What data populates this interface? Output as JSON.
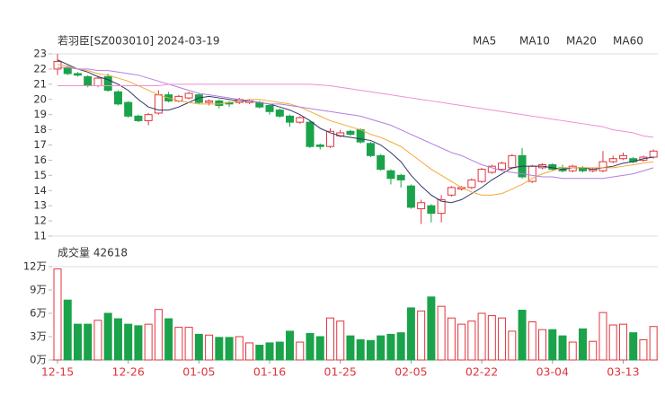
{
  "chart_data": [
    {
      "type": "candlestick",
      "title": "若羽臣[SZ003010] 2024-03-19",
      "categories": [
        "12-15",
        null,
        null,
        null,
        null,
        null,
        null,
        "12-26",
        null,
        null,
        null,
        null,
        null,
        null,
        "01-05",
        null,
        null,
        null,
        null,
        null,
        null,
        "01-16",
        null,
        null,
        null,
        null,
        null,
        null,
        "01-25",
        null,
        null,
        null,
        null,
        null,
        null,
        "02-05",
        null,
        null,
        null,
        null,
        null,
        null,
        "02-22",
        null,
        null,
        null,
        null,
        null,
        null,
        "03-04",
        null,
        null,
        null,
        null,
        null,
        null,
        "03-13",
        null,
        null,
        null
      ],
      "open": [
        22.0,
        22.1,
        21.7,
        21.5,
        20.9,
        21.5,
        20.5,
        19.8,
        18.9,
        18.6,
        19.1,
        20.3,
        19.9,
        20.1,
        20.3,
        19.8,
        19.9,
        19.8,
        19.8,
        19.8,
        19.8,
        19.6,
        19.3,
        18.9,
        18.5,
        18.5,
        17.0,
        16.9,
        17.6,
        17.9,
        18.0,
        17.1,
        16.3,
        15.3,
        15.0,
        14.3,
        12.8,
        13.0,
        12.5,
        13.7,
        14.1,
        14.2,
        14.6,
        15.2,
        15.4,
        15.5,
        16.3,
        14.6,
        15.5,
        15.7,
        15.5,
        15.3,
        15.5,
        15.3,
        15.3,
        15.9,
        16.1,
        16.1,
        16.0,
        16.2
      ],
      "high": [
        23.0,
        22.2,
        21.8,
        21.6,
        21.5,
        21.7,
        20.6,
        19.9,
        19.0,
        19.1,
        20.6,
        20.5,
        20.3,
        20.5,
        20.4,
        20.0,
        20.0,
        19.9,
        20.1,
        20.0,
        19.9,
        19.7,
        19.4,
        19.0,
        18.9,
        18.6,
        17.1,
        18.1,
        18.0,
        18.0,
        18.1,
        17.2,
        16.4,
        15.4,
        15.1,
        14.4,
        13.4,
        13.1,
        13.7,
        14.3,
        14.3,
        14.8,
        15.5,
        15.7,
        15.9,
        16.4,
        16.8,
        15.7,
        15.8,
        15.8,
        15.7,
        15.7,
        15.6,
        15.5,
        16.6,
        16.3,
        16.5,
        16.2,
        16.3,
        16.7
      ],
      "low": [
        21.6,
        21.6,
        21.5,
        20.8,
        20.8,
        20.5,
        19.6,
        18.8,
        18.5,
        18.3,
        19.0,
        19.8,
        19.8,
        20.0,
        19.7,
        19.6,
        19.4,
        19.5,
        19.7,
        19.7,
        19.4,
        19.0,
        18.8,
        18.2,
        18.4,
        16.8,
        16.7,
        16.8,
        17.5,
        17.6,
        17.1,
        16.2,
        15.3,
        14.4,
        14.2,
        12.8,
        11.8,
        11.9,
        11.9,
        13.6,
        14.0,
        14.1,
        14.5,
        15.1,
        15.3,
        15.4,
        14.8,
        14.5,
        15.4,
        15.3,
        15.2,
        15.2,
        15.2,
        15.2,
        15.2,
        15.8,
        16.0,
        15.8,
        15.9,
        16.1
      ],
      "close": [
        22.5,
        21.7,
        21.6,
        20.9,
        21.4,
        20.6,
        19.7,
        18.9,
        18.6,
        19.0,
        20.3,
        19.9,
        20.2,
        20.4,
        19.8,
        19.9,
        19.6,
        19.7,
        20.0,
        19.9,
        19.5,
        19.2,
        18.9,
        18.5,
        18.8,
        16.9,
        16.9,
        17.9,
        17.8,
        17.7,
        17.2,
        16.3,
        15.4,
        14.8,
        14.7,
        12.9,
        13.2,
        12.5,
        13.4,
        14.2,
        14.2,
        14.7,
        15.4,
        15.6,
        15.8,
        16.3,
        14.9,
        15.6,
        15.7,
        15.4,
        15.3,
        15.6,
        15.3,
        15.4,
        15.9,
        16.1,
        16.3,
        15.9,
        16.2,
        16.6
      ],
      "up_color": "#e0353d",
      "down_color": "#1aa34a",
      "series": [
        {
          "name": "MA5",
          "color": "#2f3566",
          "values": [
            22.6,
            22.3,
            22.0,
            21.8,
            21.5,
            21.3,
            21.0,
            20.6,
            20.0,
            19.5,
            19.3,
            19.3,
            19.5,
            19.8,
            20.1,
            20.2,
            20.1,
            20.0,
            19.9,
            19.9,
            19.8,
            19.7,
            19.5,
            19.3,
            19.0,
            18.6,
            18.1,
            17.8,
            17.6,
            17.5,
            17.4,
            17.3,
            17.0,
            16.5,
            15.9,
            15.0,
            14.3,
            13.7,
            13.3,
            13.2,
            13.4,
            13.8,
            14.2,
            14.7,
            15.1,
            15.5,
            15.6,
            15.6,
            15.6,
            15.5,
            15.4,
            15.5,
            15.5,
            15.4,
            15.5,
            15.6,
            15.8,
            15.9,
            16.1,
            16.2
          ]
        },
        {
          "name": "MA10",
          "color": "#f2a93b",
          "values": [
            22.3,
            22.2,
            22.0,
            21.9,
            21.7,
            21.6,
            21.4,
            21.2,
            20.9,
            20.6,
            20.3,
            20.1,
            19.9,
            19.8,
            19.7,
            19.7,
            19.7,
            19.8,
            19.9,
            20.0,
            20.0,
            19.9,
            19.8,
            19.7,
            19.5,
            19.2,
            18.9,
            18.6,
            18.4,
            18.2,
            18.0,
            17.7,
            17.5,
            17.2,
            16.9,
            16.4,
            15.9,
            15.4,
            15.0,
            14.6,
            14.2,
            13.9,
            13.7,
            13.7,
            13.8,
            14.1,
            14.4,
            14.8,
            15.1,
            15.3,
            15.5,
            15.5,
            15.5,
            15.5,
            15.5,
            15.5,
            15.6,
            15.7,
            15.8,
            15.9
          ]
        },
        {
          "name": "MA20",
          "color": "#b27fe0",
          "values": [
            22.1,
            22.1,
            22.0,
            22.0,
            21.9,
            21.9,
            21.8,
            21.7,
            21.6,
            21.4,
            21.2,
            21.0,
            20.8,
            20.6,
            20.4,
            20.3,
            20.2,
            20.1,
            20.0,
            19.9,
            19.8,
            19.7,
            19.7,
            19.6,
            19.5,
            19.4,
            19.3,
            19.2,
            19.1,
            19.0,
            18.9,
            18.7,
            18.5,
            18.3,
            18.0,
            17.7,
            17.4,
            17.1,
            16.8,
            16.5,
            16.3,
            16.0,
            15.7,
            15.5,
            15.3,
            15.2,
            15.1,
            15.0,
            14.9,
            14.9,
            14.8,
            14.8,
            14.8,
            14.8,
            14.8,
            14.9,
            15.0,
            15.1,
            15.3,
            15.5
          ]
        },
        {
          "name": "MA60",
          "color": "#ef8fd0",
          "values": [
            20.9,
            20.9,
            20.9,
            20.9,
            20.9,
            20.9,
            20.9,
            20.9,
            20.9,
            20.9,
            20.9,
            21.0,
            21.0,
            21.0,
            21.0,
            21.0,
            21.0,
            21.0,
            21.0,
            21.0,
            21.0,
            21.0,
            21.0,
            21.0,
            21.0,
            21.0,
            20.95,
            20.9,
            20.8,
            20.7,
            20.6,
            20.5,
            20.4,
            20.3,
            20.2,
            20.1,
            20.0,
            19.9,
            19.8,
            19.7,
            19.6,
            19.5,
            19.4,
            19.3,
            19.2,
            19.1,
            19.0,
            18.9,
            18.8,
            18.7,
            18.6,
            18.5,
            18.4,
            18.3,
            18.2,
            18.0,
            17.9,
            17.8,
            17.6,
            17.5
          ]
        }
      ],
      "ylim": [
        11,
        23
      ],
      "yticks": [
        11,
        12,
        13,
        14,
        15,
        16,
        17,
        18,
        19,
        20,
        21,
        22,
        23
      ]
    },
    {
      "type": "bar",
      "title": "成交量 42618",
      "values": [
        11.7,
        7.7,
        4.6,
        4.6,
        5.1,
        6.0,
        5.3,
        4.6,
        4.4,
        4.6,
        6.5,
        5.3,
        4.2,
        4.2,
        3.3,
        3.2,
        2.9,
        2.9,
        3.0,
        2.2,
        1.9,
        2.2,
        2.3,
        3.7,
        2.3,
        3.4,
        3.0,
        5.4,
        5.0,
        3.1,
        2.6,
        2.5,
        3.1,
        3.3,
        3.5,
        6.7,
        6.3,
        8.1,
        6.9,
        5.4,
        4.6,
        5.0,
        6.0,
        5.7,
        5.4,
        3.7,
        6.4,
        4.9,
        3.9,
        3.9,
        3.1,
        2.3,
        4.0,
        2.4,
        6.1,
        4.5,
        4.6,
        3.5,
        2.6,
        4.3
      ],
      "ylim": [
        0,
        12
      ],
      "yticks": [
        {
          "value": 0,
          "label": "0万"
        },
        {
          "value": 3,
          "label": "3万"
        },
        {
          "value": 6,
          "label": "6万"
        },
        {
          "value": 9,
          "label": "9万"
        },
        {
          "value": 12,
          "label": "12万"
        }
      ]
    }
  ]
}
